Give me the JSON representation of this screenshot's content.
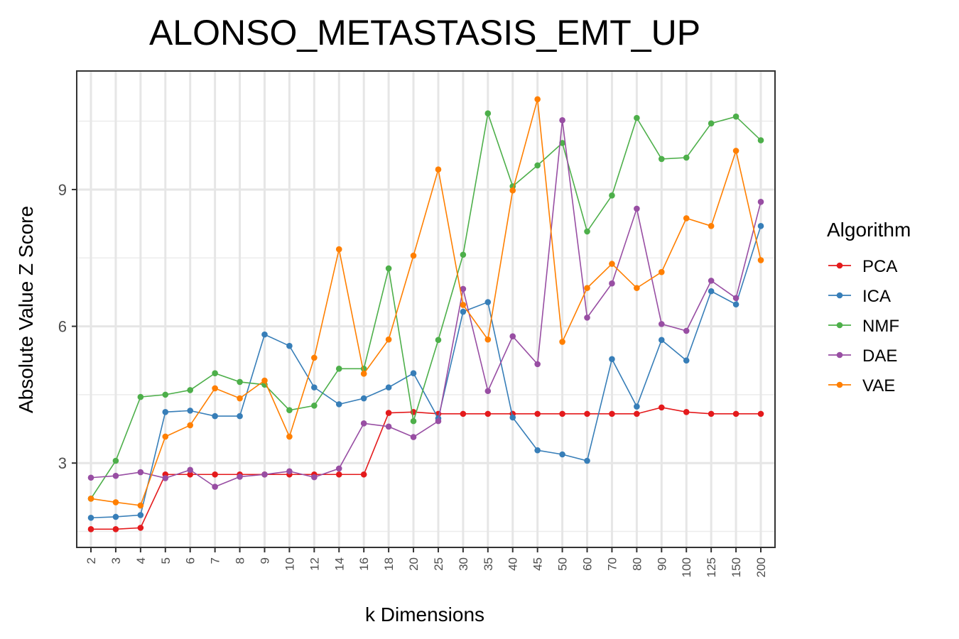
{
  "chart_data": {
    "type": "line",
    "title": "ALONSO_METASTASIS_EMT_UP",
    "xlabel": "k Dimensions",
    "ylabel": "Absolute Value Z Score",
    "categories": [
      "2",
      "3",
      "4",
      "5",
      "6",
      "7",
      "8",
      "9",
      "10",
      "12",
      "14",
      "16",
      "18",
      "20",
      "25",
      "30",
      "35",
      "40",
      "45",
      "50",
      "60",
      "70",
      "80",
      "90",
      "100",
      "125",
      "150",
      "200"
    ],
    "ylim": [
      1.15,
      11.6
    ],
    "yticks": [
      3,
      6,
      9
    ],
    "grid": true,
    "legend_title": "Algorithm",
    "legend_position": "right",
    "series": [
      {
        "name": "PCA",
        "color": "#E41A1C",
        "values": [
          1.55,
          1.55,
          1.58,
          2.75,
          2.75,
          2.75,
          2.75,
          2.75,
          2.75,
          2.75,
          2.75,
          2.75,
          4.1,
          4.12,
          4.08,
          4.08,
          4.08,
          4.08,
          4.08,
          4.08,
          4.08,
          4.08,
          4.08,
          4.22,
          4.12,
          4.08,
          4.08,
          4.08
        ]
      },
      {
        "name": "ICA",
        "color": "#377EB8",
        "values": [
          1.8,
          1.82,
          1.86,
          4.12,
          4.15,
          4.03,
          4.03,
          5.82,
          5.57,
          4.66,
          4.29,
          4.42,
          4.66,
          4.97,
          3.98,
          6.32,
          6.53,
          4.0,
          3.28,
          3.19,
          3.05,
          5.28,
          4.24,
          5.7,
          5.25,
          6.77,
          6.48,
          8.2
        ]
      },
      {
        "name": "NMF",
        "color": "#4DAF4A",
        "values": [
          2.22,
          3.05,
          4.45,
          4.5,
          4.6,
          4.97,
          4.78,
          4.72,
          4.16,
          4.26,
          5.07,
          5.07,
          7.27,
          3.92,
          5.7,
          7.57,
          10.67,
          9.07,
          9.53,
          10.02,
          8.08,
          8.87,
          10.57,
          9.67,
          9.7,
          10.45,
          10.6,
          10.08
        ]
      },
      {
        "name": "DAE",
        "color": "#984EA3",
        "values": [
          2.68,
          2.72,
          2.8,
          2.67,
          2.85,
          2.48,
          2.7,
          2.75,
          2.82,
          2.69,
          2.88,
          3.87,
          3.8,
          3.57,
          3.92,
          6.82,
          4.58,
          5.78,
          5.17,
          10.52,
          6.19,
          6.94,
          8.58,
          6.05,
          5.9,
          7.0,
          6.62,
          8.73
        ]
      },
      {
        "name": "VAE",
        "color": "#FF7F00",
        "values": [
          2.22,
          2.14,
          2.07,
          3.58,
          3.83,
          4.64,
          4.42,
          4.81,
          3.58,
          5.31,
          7.69,
          4.96,
          5.71,
          7.55,
          9.44,
          6.47,
          5.71,
          8.98,
          10.98,
          5.66,
          6.84,
          7.37,
          6.84,
          7.19,
          8.37,
          8.2,
          9.85,
          7.45
        ]
      }
    ]
  }
}
